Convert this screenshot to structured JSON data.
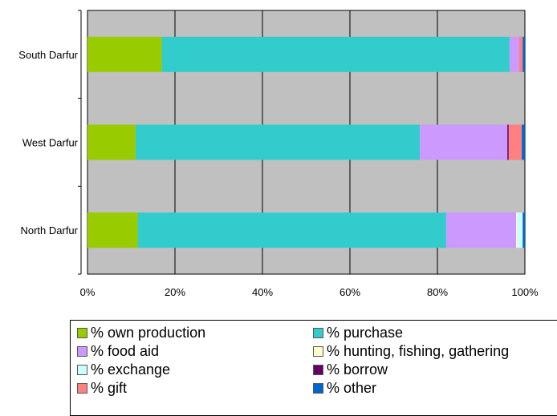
{
  "chart_data": {
    "type": "bar",
    "orientation": "horizontal",
    "stacked": "percent",
    "categories": [
      "South Darfur",
      "West Darfur",
      "North Darfur"
    ],
    "series": [
      {
        "name": "% own production",
        "color": "#99cc00",
        "values": [
          17,
          11,
          11.5
        ]
      },
      {
        "name": "% purchase",
        "color": "#33cccc",
        "values": [
          79.5,
          65,
          70.5
        ]
      },
      {
        "name": "% food aid",
        "color": "#cc99ff",
        "values": [
          2.2,
          20,
          16
        ]
      },
      {
        "name": "% hunting, fishing, gathering",
        "color": "#ffffcc",
        "values": [
          0,
          0,
          0.3
        ]
      },
      {
        "name": "% exchange",
        "color": "#ccffff",
        "values": [
          0,
          0,
          1.2
        ]
      },
      {
        "name": "% borrow",
        "color": "#660066",
        "values": [
          0,
          0.3,
          0
        ]
      },
      {
        "name": "% gift",
        "color": "#ff8080",
        "values": [
          0.8,
          3,
          0
        ]
      },
      {
        "name": "% other",
        "color": "#0066cc",
        "values": [
          0.5,
          0.7,
          0.5
        ]
      }
    ],
    "xlim": [
      0,
      100
    ],
    "x_ticks": [
      "0%",
      "20%",
      "40%",
      "60%",
      "80%",
      "100%"
    ],
    "grid": true,
    "plot_background": "#c0c0c0",
    "legend_position": "bottom"
  }
}
